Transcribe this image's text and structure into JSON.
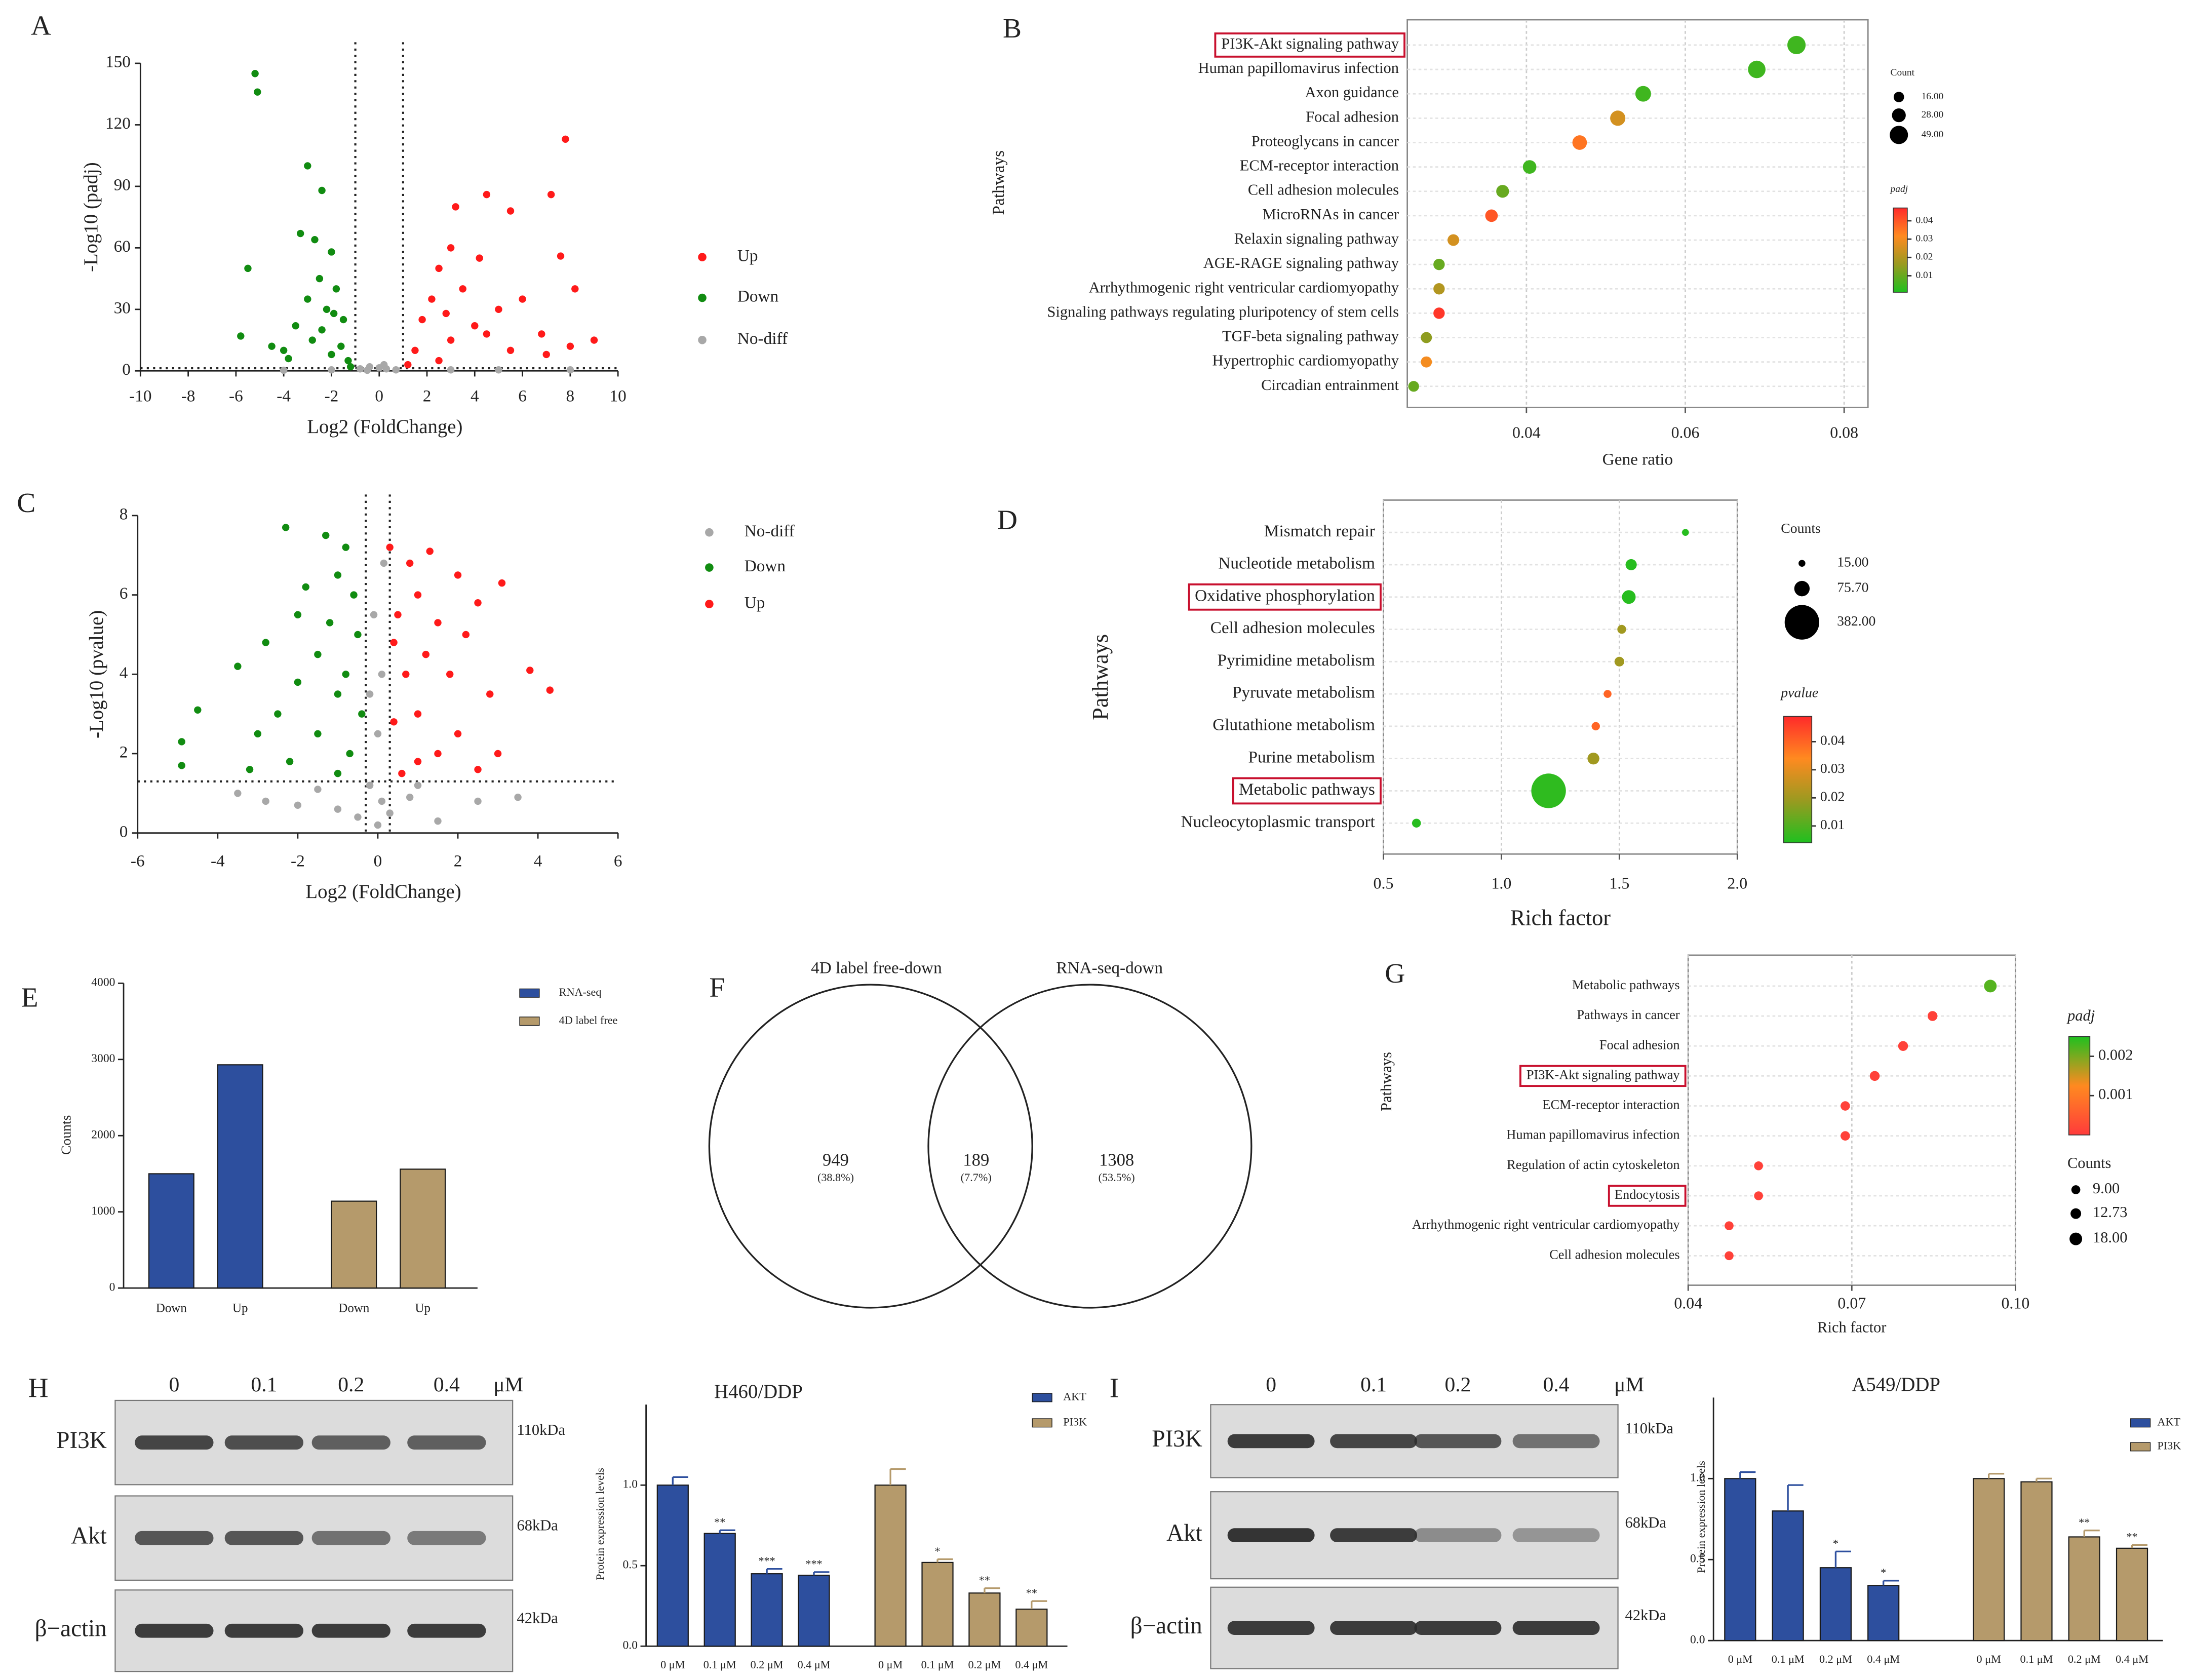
{
  "chart_data": [
    {
      "type": "scatter",
      "panel": "A",
      "xlabel": "Log2 (FoldChange)",
      "ylabel": "-Log10 (padj)",
      "xlim": [
        -10,
        10
      ],
      "xticks": [
        -10,
        -8,
        -6,
        -4,
        -2,
        0,
        2,
        4,
        6,
        8,
        10
      ],
      "ylim": [
        0,
        150
      ],
      "yticks": [
        0,
        30,
        60,
        90,
        120,
        150
      ],
      "thresholds": {
        "x": [
          -1,
          1
        ],
        "y": 1.3
      },
      "series": [
        {
          "name": "Up",
          "color": "#ff1a1a",
          "x": [
            7.8,
            4.5,
            7.2,
            3.2,
            5.5,
            7.6,
            3.0,
            4.2,
            2.5,
            8.2,
            6.0,
            3.5,
            2.2,
            5.0,
            1.8,
            4.0,
            6.8,
            9.0,
            8.0,
            3.0,
            1.5,
            5.5,
            2.5,
            7.0,
            1.2,
            4.5,
            2.8
          ],
          "values": [
            113,
            86,
            86,
            80,
            78,
            56,
            60,
            55,
            50,
            40,
            35,
            40,
            35,
            30,
            25,
            22,
            18,
            15,
            12,
            15,
            10,
            10,
            5,
            8,
            3,
            18,
            28
          ]
        },
        {
          "name": "Down",
          "color": "#118c11",
          "x": [
            -5.2,
            -5.1,
            -3.0,
            -2.4,
            -3.3,
            -2.7,
            -5.5,
            -2.0,
            -2.5,
            -1.8,
            -3.0,
            -2.2,
            -1.5,
            -3.5,
            -5.8,
            -4.5,
            -2.8,
            -1.6,
            -2.0,
            -1.3,
            -3.8,
            -2.4,
            -1.9,
            -4.0,
            -1.2
          ],
          "values": [
            145,
            136,
            100,
            88,
            67,
            64,
            50,
            58,
            45,
            40,
            35,
            30,
            25,
            22,
            17,
            12,
            15,
            12,
            8,
            5,
            6,
            20,
            28,
            10,
            2
          ]
        },
        {
          "name": "No-diff",
          "color": "#a8a8a8",
          "x": [
            -0.8,
            -0.4,
            0,
            0.3,
            0.7,
            -0.5,
            0.2,
            -2,
            3,
            5,
            -4,
            8
          ],
          "values": [
            1,
            2,
            1.5,
            1,
            0.5,
            0.3,
            3,
            0.5,
            0.5,
            0.5,
            0.3,
            0.5
          ]
        }
      ]
    },
    {
      "type": "bubble",
      "panel": "B",
      "xlabel": "Gene ratio",
      "ylabel": "Pathways",
      "categories": [
        "PI3K-Akt signaling pathway",
        "Human papillomavirus infection",
        "Axon guidance",
        "Focal adhesion",
        "Proteoglycans in cancer",
        "ECM-receptor interaction",
        "Cell adhesion molecules",
        "MicroRNAs in cancer",
        "Relaxin signaling pathway",
        "AGE-RAGE signaling pathway",
        "Arrhythmogenic right ventricular cardiomyopathy",
        "Signaling pathways regulating pluripotency of stem cells",
        "TGF-beta signaling pathway",
        "Hypertrophic cardiomyopathy",
        "Circadian entrainment"
      ],
      "x": [
        0.074,
        0.069,
        0.0547,
        0.0515,
        0.0467,
        0.0404,
        0.037,
        0.0356,
        0.0308,
        0.029,
        0.029,
        0.029,
        0.0274,
        0.0274,
        0.0258
      ],
      "sizes": [
        49,
        45,
        36,
        34,
        31,
        27,
        24,
        23,
        20,
        19,
        19,
        19,
        18,
        18,
        17
      ],
      "color_values": [
        0.005,
        0.005,
        0.005,
        0.025,
        0.035,
        0.005,
        0.01,
        0.04,
        0.025,
        0.01,
        0.02,
        0.045,
        0.015,
        0.03,
        0.01
      ],
      "xlim": [
        0.025,
        0.083
      ],
      "xticks": [
        0.04,
        0.06,
        0.08
      ],
      "highlight": [
        0
      ],
      "size_legend": {
        "title": "Count",
        "ticks": [
          {
            "value": 16,
            "label": "16.00"
          },
          {
            "value": 28,
            "label": "28.00"
          },
          {
            "value": 49,
            "label": "49.00"
          }
        ]
      },
      "color_legend": {
        "title": "padj",
        "lim": [
          0.001,
          0.047
        ],
        "ticks": [
          0.04,
          0.03,
          0.02,
          0.01
        ],
        "colors": [
          "#1fc01f",
          "#9a9a20",
          "#ff8a20",
          "#ff2a2a"
        ]
      }
    },
    {
      "type": "scatter",
      "panel": "C",
      "xlabel": "Log2 (FoldChange)",
      "ylabel": "-Log10 (pvalue)",
      "xlim": [
        -6,
        6
      ],
      "xticks": [
        -6,
        -4,
        -2,
        0,
        2,
        4,
        6
      ],
      "ylim": [
        0,
        8
      ],
      "yticks": [
        0,
        2,
        4,
        6,
        8
      ],
      "thresholds": {
        "x": [
          -0.3,
          0.3
        ],
        "y": 1.3
      },
      "series": [
        {
          "name": "No-diff",
          "color": "#a8a8a8",
          "x": [
            0,
            0.1,
            -0.2,
            0.3,
            -0.5,
            0.8,
            -1.0,
            1.5,
            -2.0,
            2.5,
            -3.5,
            -2.8,
            0,
            0.1,
            -0.1,
            0.15,
            -0.2,
            3.5,
            -1.5,
            1.0
          ],
          "values": [
            0.2,
            0.8,
            1.2,
            0.5,
            0.4,
            0.9,
            0.6,
            0.3,
            0.7,
            0.8,
            1.0,
            0.8,
            2.5,
            4.0,
            5.5,
            6.8,
            3.5,
            0.9,
            1.1,
            1.2
          ]
        },
        {
          "name": "Down",
          "color": "#118c11",
          "x": [
            -2.3,
            -1.3,
            -0.8,
            -1.0,
            -1.8,
            -0.6,
            -2.0,
            -1.2,
            -0.5,
            -2.8,
            -1.5,
            -3.5,
            -0.8,
            -2.0,
            -4.5,
            -1.0,
            -2.5,
            -0.4,
            -3.0,
            -4.9,
            -1.5,
            -0.7,
            -2.2,
            -4.9,
            -1.0,
            -3.2
          ],
          "values": [
            7.7,
            7.5,
            7.2,
            6.5,
            6.2,
            6.0,
            5.5,
            5.3,
            5.0,
            4.8,
            4.5,
            4.2,
            4.0,
            3.8,
            3.1,
            3.5,
            3.0,
            3.0,
            2.5,
            2.3,
            2.5,
            2.0,
            1.8,
            1.7,
            1.5,
            1.6
          ]
        },
        {
          "name": "Up",
          "color": "#ff1a1a",
          "x": [
            0.3,
            1.3,
            2.0,
            0.8,
            3.1,
            1.0,
            2.5,
            0.5,
            1.5,
            2.2,
            0.4,
            3.8,
            1.2,
            4.3,
            1.8,
            0.7,
            2.8,
            1.0,
            0.4,
            2.0,
            3.0,
            1.5,
            0.6,
            2.5,
            1.0
          ],
          "values": [
            7.2,
            7.1,
            6.5,
            6.8,
            6.3,
            6.0,
            5.8,
            5.5,
            5.3,
            5.0,
            4.8,
            4.1,
            4.5,
            3.6,
            4.0,
            4.0,
            3.5,
            3.0,
            2.8,
            2.5,
            2.0,
            2.0,
            1.5,
            1.6,
            1.8
          ]
        }
      ]
    },
    {
      "type": "bubble",
      "panel": "D",
      "xlabel": "Rich factor",
      "ylabel": "Pathways",
      "categories": [
        "Mismatch repair",
        "Nucleotide metabolism",
        "Oxidative phosphorylation",
        "Cell adhesion molecules",
        "Pyrimidine metabolism",
        "Pyruvate metabolism",
        "Glutathione metabolism",
        "Purine metabolism",
        "Metabolic pathways",
        "Nucleocytoplasmic transport"
      ],
      "x": [
        1.78,
        1.55,
        1.54,
        1.51,
        1.5,
        1.45,
        1.4,
        1.39,
        1.2,
        0.64
      ],
      "sizes": [
        15,
        40,
        60,
        25,
        30,
        20,
        22,
        45,
        382,
        25
      ],
      "color_values": [
        0.005,
        0.005,
        0.005,
        0.02,
        0.02,
        0.04,
        0.04,
        0.02,
        0.006,
        0.005
      ],
      "xlim": [
        0.5,
        2.0
      ],
      "xticks": [
        0.5,
        {
          "value": 1.0,
          "label": "1.0"
        },
        1.5,
        {
          "value": 2.0,
          "label": "2.0"
        }
      ],
      "highlight": [
        2,
        8
      ],
      "size_legend": {
        "title": "Counts",
        "ticks": [
          {
            "value": 15,
            "label": "15.00"
          },
          {
            "value": 75.7,
            "label": "75.70"
          },
          {
            "value": 382,
            "label": "382.00"
          }
        ]
      },
      "color_legend": {
        "title": "pvalue",
        "lim": [
          0.004,
          0.049
        ],
        "ticks": [
          0.04,
          0.03,
          0.02,
          0.01
        ],
        "colors": [
          "#1fc01f",
          "#9a9a20",
          "#ff8a20",
          "#ff2a2a"
        ]
      }
    },
    {
      "type": "bar",
      "panel": "E",
      "ylabel": "Counts",
      "categories": [
        "Down",
        "Up"
      ],
      "ylim": [
        0,
        4000
      ],
      "yticks": [
        0,
        1000,
        2000,
        3000,
        4000
      ],
      "series": [
        {
          "name": "RNA-seq",
          "color": "#2d4f9e",
          "values": [
            1500,
            2930
          ]
        },
        {
          "name": "4D label free",
          "color": "#b59a6b",
          "values": [
            1140,
            1560
          ]
        }
      ]
    },
    {
      "type": "venn",
      "panel": "F",
      "sets": [
        "4D label free-down",
        "RNA-seq-down"
      ],
      "values": [
        949,
        189,
        1308
      ],
      "percents": [
        38.8,
        7.7,
        53.5
      ],
      "percent_labels": [
        "(38.8%)",
        "(7.7%)",
        "(53.5%)"
      ]
    },
    {
      "type": "bubble",
      "panel": "G",
      "xlabel": "Rich factor",
      "ylabel": "Pathways",
      "categories": [
        "Metabolic pathways",
        "Pathways in cancer",
        "Focal adhesion",
        "PI3K-Akt signaling pathway",
        "ECM-receptor interaction",
        "Human papillomavirus infection",
        "Regulation of actin cytoskeleton",
        "Endocytosis",
        "Arrhythmogenic right ventricular cardiomyopathy",
        "Cell adhesion molecules"
      ],
      "x": [
        0.0954,
        0.0848,
        0.0794,
        0.0742,
        0.0688,
        0.0688,
        0.0529,
        0.0529,
        0.0475,
        0.0475
      ],
      "sizes": [
        18,
        11,
        11,
        11,
        10,
        10,
        9,
        9,
        9,
        9
      ],
      "color_values": [
        0.0022,
        0.0001,
        0.0001,
        0.0001,
        0.0001,
        0.0001,
        0.0001,
        0.0001,
        0.0001,
        0.0001
      ],
      "xlim": [
        0.04,
        0.1
      ],
      "xticks": [
        0.04,
        0.07,
        {
          "value": 0.1,
          "label": "0.10"
        }
      ],
      "highlight": [
        3,
        7
      ],
      "size_legend": {
        "title": "Counts",
        "ticks": [
          {
            "value": 9,
            "label": "9.00"
          },
          {
            "value": 12.73,
            "label": "12.73"
          },
          {
            "value": 18,
            "label": "18.00"
          }
        ]
      },
      "color_legend": {
        "title": "padj",
        "lim": [
          0,
          0.0025
        ],
        "ticks": [
          0.002,
          0.001
        ],
        "colors": [
          "#ff3b3b",
          "#ff8a20",
          "#1fc01f"
        ]
      }
    },
    {
      "type": "bar",
      "title": "H460/DDP",
      "ylabel": "Protein expression levels",
      "categories": [
        "0 μM",
        "0.1 μM",
        "0.2 μM",
        "0.4 μM"
      ],
      "ylim": [
        0,
        1.5
      ],
      "yticks": [
        {
          "value": 0,
          "label": "0.0"
        },
        0.5,
        {
          "value": 1.0,
          "label": "1.0"
        }
      ],
      "series": [
        {
          "name": "AKT",
          "color": "#2d4f9e",
          "values": [
            1.0,
            0.7,
            0.45,
            0.44
          ],
          "errors": [
            0.05,
            0.02,
            0.03,
            0.02
          ],
          "significance": [
            null,
            "**",
            "***",
            "***"
          ]
        },
        {
          "name": "PI3K",
          "color": "#b59a6b",
          "values": [
            1.0,
            0.52,
            0.33,
            0.23
          ],
          "errors": [
            0.1,
            0.02,
            0.03,
            0.05
          ],
          "significance": [
            null,
            "*",
            "**",
            "**"
          ]
        }
      ]
    },
    {
      "type": "bar",
      "title": "A549/DDP",
      "ylabel": "Protein expression levels",
      "categories": [
        "0 μM",
        "0.1 μM",
        "0.2 μM",
        "0.4 μM"
      ],
      "ylim": [
        0,
        1.5
      ],
      "yticks": [
        {
          "value": 0,
          "label": "0.0"
        },
        0.5,
        {
          "value": 1.0,
          "label": "1.0"
        }
      ],
      "series": [
        {
          "name": "AKT",
          "color": "#2d4f9e",
          "values": [
            1.0,
            0.8,
            0.45,
            0.34
          ],
          "errors": [
            0.04,
            0.16,
            0.1,
            0.03
          ],
          "significance": [
            null,
            null,
            "*",
            "*"
          ]
        },
        {
          "name": "PI3K",
          "color": "#b59a6b",
          "values": [
            1.0,
            0.98,
            0.64,
            0.57
          ],
          "errors": [
            0.03,
            0.02,
            0.04,
            0.02
          ],
          "significance": [
            null,
            null,
            "**",
            "**"
          ]
        }
      ]
    }
  ],
  "blots": [
    {
      "panel": "H",
      "lanes": [
        "0",
        "0.1",
        "0.2",
        "0.4"
      ],
      "unit": "μM",
      "rows": [
        {
          "protein": "PI3K",
          "size": "110kDa"
        },
        {
          "protein": "Akt",
          "size": "68kDa"
        },
        {
          "protein": "β−actin",
          "size": "42kDa"
        }
      ]
    },
    {
      "panel": "I",
      "lanes": [
        "0",
        "0.1",
        "0.2",
        "0.4"
      ],
      "unit": "μM",
      "rows": [
        {
          "protein": "PI3K",
          "size": "110kDa"
        },
        {
          "protein": "Akt",
          "size": "68kDa"
        },
        {
          "protein": "β−actin",
          "size": "42kDa"
        }
      ]
    }
  ]
}
